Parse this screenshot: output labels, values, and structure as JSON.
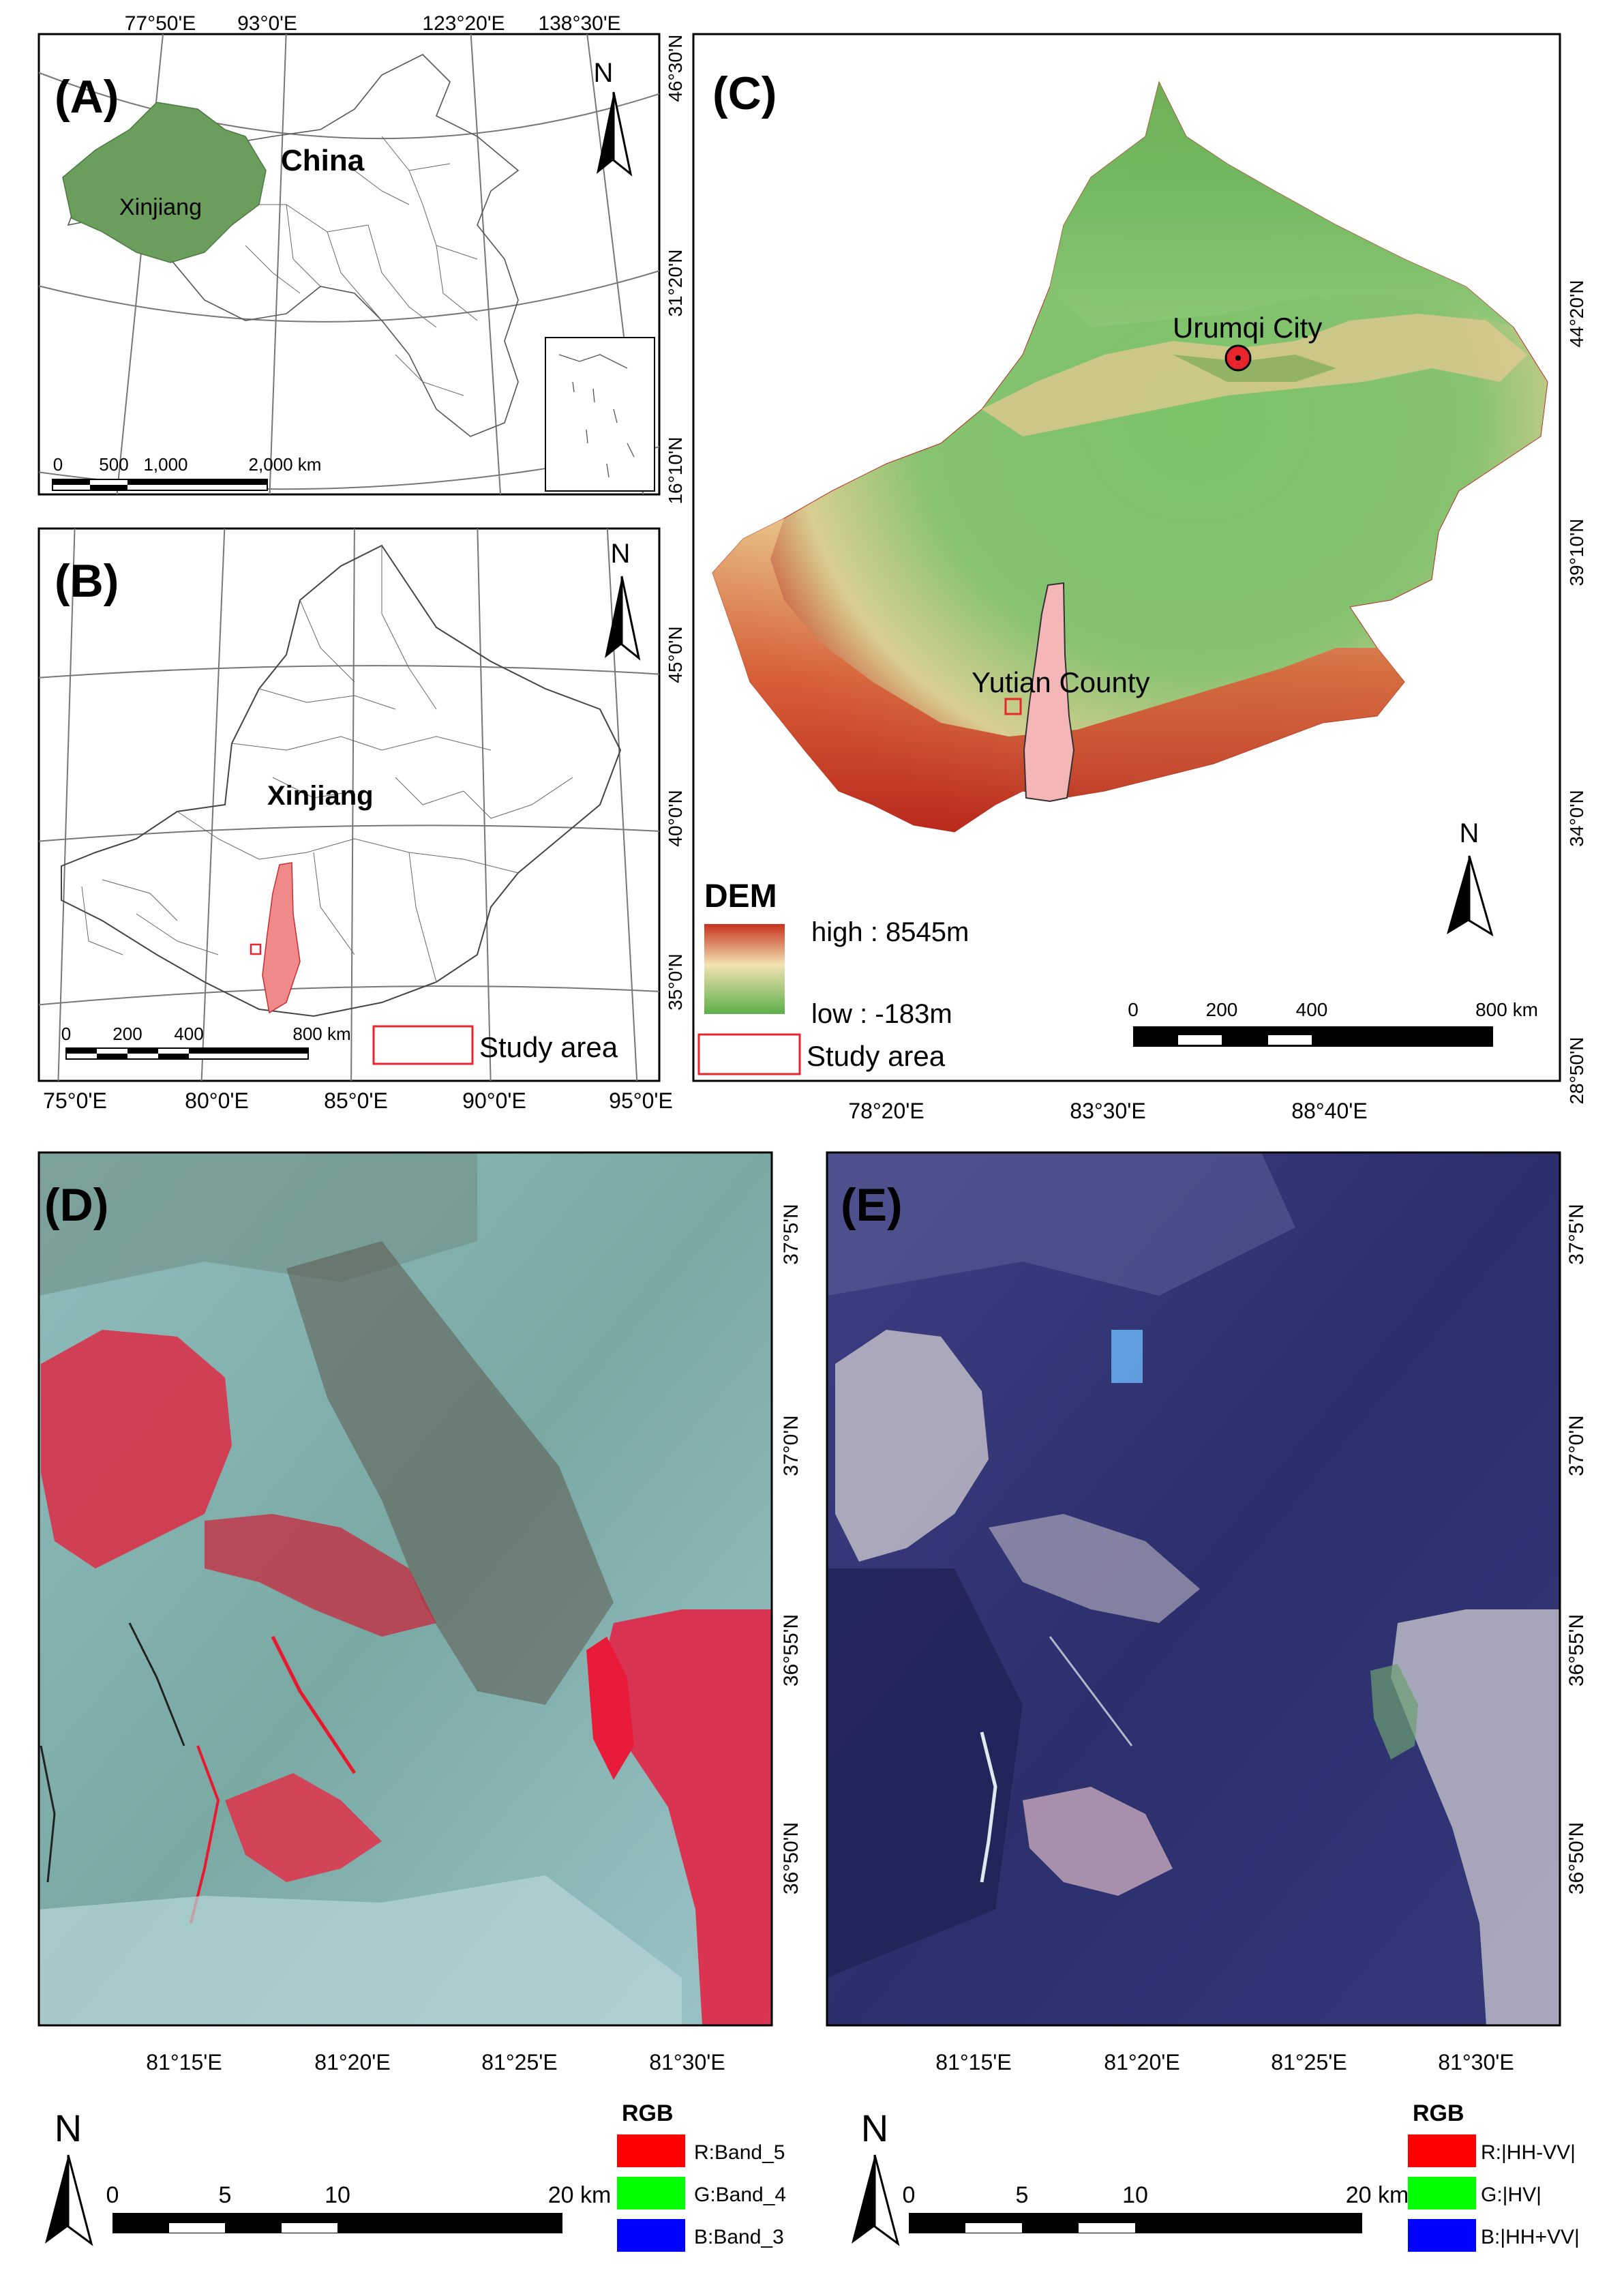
{
  "panel_a": {
    "label": "(A)",
    "country_label": "China",
    "region_label": "Xinjiang",
    "top_ticks": [
      "77°50'E",
      "93°0'E",
      "123°20'E",
      "138°30'E"
    ],
    "right_ticks": [
      "46°30'N",
      "31°20'N",
      "16°10'N"
    ],
    "north": "N",
    "scale_labels": [
      "0",
      "500",
      "1,000",
      "2,000 km"
    ]
  },
  "panel_b": {
    "label": "(B)",
    "region_label": "Xinjiang",
    "bottom_ticks": [
      "75°0'E",
      "80°0'E",
      "85°0'E",
      "90°0'E",
      "95°0'E"
    ],
    "right_ticks": [
      "45°0'N",
      "40°0'N",
      "35°0'N"
    ],
    "north": "N",
    "scale_labels": [
      "0",
      "200",
      "400",
      "800 km"
    ],
    "legend_study_area": "Study area"
  },
  "panel_c": {
    "label": "(C)",
    "city_label": "Urumqi City",
    "county_label": "Yutian County",
    "bottom_ticks": [
      "78°20'E",
      "83°30'E",
      "88°40'E"
    ],
    "right_ticks": [
      "44°20'N",
      "39°10'N",
      "34°0'N",
      "28°50'N"
    ],
    "north": "N",
    "dem_title": "DEM",
    "dem_high": "high : 8545m",
    "dem_low": "low : -183m",
    "legend_study_area": "Study area",
    "scale_labels": [
      "0",
      "200",
      "400",
      "800 km"
    ]
  },
  "panel_d": {
    "label": "(D)",
    "bottom_ticks": [
      "81°15'E",
      "81°20'E",
      "81°25'E",
      "81°30'E"
    ],
    "right_ticks": [
      "37°5'N",
      "37°0'N",
      "36°55'N",
      "36°50'N"
    ],
    "north": "N",
    "scale_labels": [
      "0",
      "5",
      "10",
      "20 km"
    ],
    "rgb_title": "RGB",
    "rgb_items": [
      {
        "label": "R:Band_5",
        "color": "#ff0000"
      },
      {
        "label": "G:Band_4",
        "color": "#00ff00"
      },
      {
        "label": "B:Band_3",
        "color": "#0000ff"
      }
    ]
  },
  "panel_e": {
    "label": "(E)",
    "bottom_ticks": [
      "81°15'E",
      "81°20'E",
      "81°25'E",
      "81°30'E"
    ],
    "right_ticks": [
      "37°5'N",
      "37°0'N",
      "36°55'N",
      "36°50'N"
    ],
    "north": "N",
    "scale_labels": [
      "0",
      "5",
      "10",
      "20 km"
    ],
    "rgb_title": "RGB",
    "rgb_items": [
      {
        "label": "R:|HH-VV|",
        "color": "#ff0000"
      },
      {
        "label": "G:|HV|",
        "color": "#00ff00"
      },
      {
        "label": "B:|HH+VV|",
        "color": "#0000ff"
      }
    ]
  },
  "colors": {
    "xinjiang_fill": "#6b9e5c",
    "study_area_fill": "#f4b6b6",
    "study_area_outline": "#e8242c",
    "dem_high": "#c8321e",
    "dem_mid": "#f2e2b2",
    "dem_low": "#5cb04a"
  }
}
